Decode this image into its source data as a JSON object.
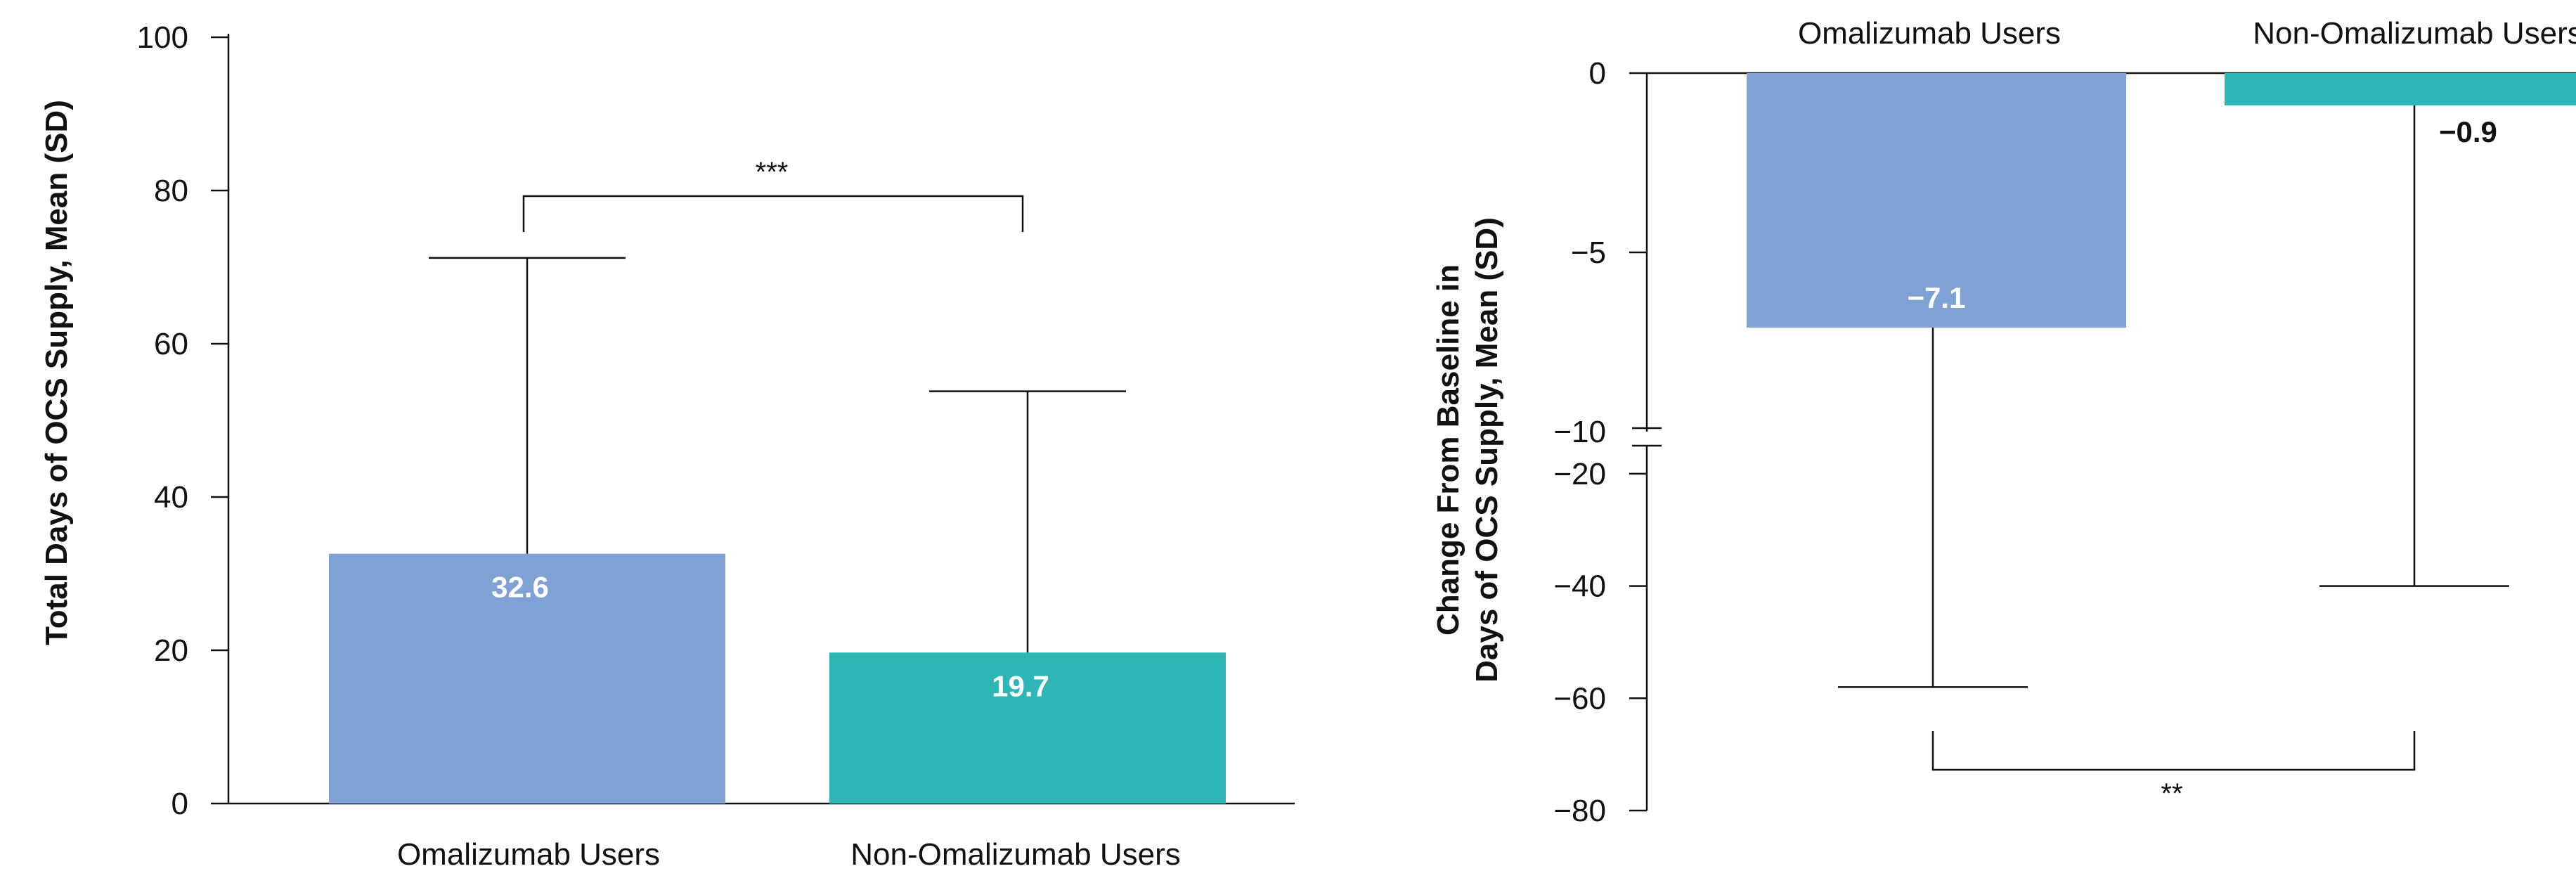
{
  "colors": {
    "omalizumab": "#7fa1d4",
    "non_omalizumab": "#2db6b6",
    "axis": "#111111"
  },
  "chart_data": [
    {
      "type": "bar",
      "title": "",
      "xlabel": "",
      "ylabel": "Total Days of OCS Supply, Mean (SD)",
      "ylim": [
        0,
        100
      ],
      "yticks": [
        0,
        20,
        40,
        60,
        80,
        100
      ],
      "categories": [
        "Omalizumab Users",
        "Non-Omalizumab Users"
      ],
      "values": [
        32.6,
        19.7
      ],
      "value_labels": [
        "32.6",
        "19.7"
      ],
      "error_upper": [
        71.2,
        53.8
      ],
      "significance": "***",
      "grid": false
    },
    {
      "type": "bar",
      "title": "",
      "xlabel": "",
      "ylabel_lines": [
        "Change From Baseline in",
        "Days of OCS Supply, Mean (SD)"
      ],
      "ylim": [
        -80,
        0
      ],
      "axis_break": [
        -10,
        -15
      ],
      "yticks_upper": [
        "0",
        "−5",
        "−10"
      ],
      "yticks_lower": [
        "−20",
        "−40",
        "−60",
        "−80"
      ],
      "categories": [
        "Omalizumab Users",
        "Non-Omalizumab Users"
      ],
      "values": [
        -7.1,
        -0.9
      ],
      "value_labels": [
        "−7.1",
        "−0.9"
      ],
      "error_lower": [
        -58,
        -40
      ],
      "significance": "**",
      "grid": false
    }
  ]
}
